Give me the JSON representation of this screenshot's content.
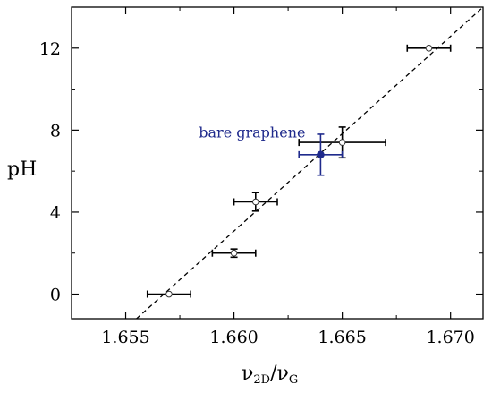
{
  "chart_data": {
    "type": "scatter",
    "title": "",
    "xlabel": {
      "main": "ν",
      "sub": "2D",
      "sep": "/",
      "main2": "ν",
      "sub2": "G"
    },
    "ylabel": "pH",
    "xlim": [
      1.6525,
      1.6715
    ],
    "ylim": [
      -1.2,
      14.0
    ],
    "x_ticks": [
      1.655,
      1.66,
      1.665,
      1.67
    ],
    "x_tick_labels": [
      "1.655",
      "1.660",
      "1.665",
      "1.670"
    ],
    "y_ticks": [
      0,
      4,
      8,
      12
    ],
    "y_tick_labels": [
      "0",
      "4",
      "8",
      "12"
    ],
    "grid": false,
    "series": [
      {
        "marker": "open-circle",
        "color": "#000000",
        "points": [
          {
            "x": 1.657,
            "y": 0.0,
            "xerr": 0.001,
            "yerr": 0.0
          },
          {
            "x": 1.66,
            "y": 2.0,
            "xerr": 0.001,
            "yerr": 0.2
          },
          {
            "x": 1.661,
            "y": 4.5,
            "xerr": 0.001,
            "yerr": 0.45
          },
          {
            "x": 1.665,
            "y": 7.4,
            "xerr": 0.002,
            "yerr": 0.75
          },
          {
            "x": 1.669,
            "y": 12.0,
            "xerr": 0.001,
            "yerr": 0.0
          }
        ]
      },
      {
        "marker": "filled-circle",
        "color": "#1f2a8c",
        "points": [
          {
            "x": 1.664,
            "y": 6.8,
            "xerr": 0.001,
            "yerr": 1.0
          }
        ]
      }
    ],
    "fit_line": {
      "style": "dashed",
      "color": "#000000",
      "x": [
        1.6555,
        1.6715
      ],
      "y": [
        -1.2,
        14.0
      ]
    },
    "annotation": {
      "text": "bare graphene",
      "x": 1.6633,
      "y": 7.65,
      "color": "#1f2a8c"
    }
  }
}
